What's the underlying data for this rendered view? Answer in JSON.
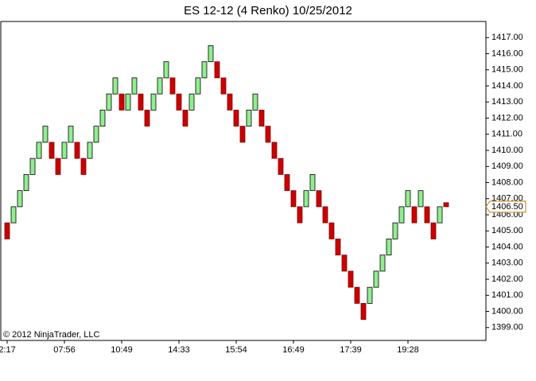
{
  "chart_data": {
    "type": "renko",
    "title": "ES 12-12 (4 Renko)  10/25/2012",
    "copyright": "© 2012 NinjaTrader, LLC",
    "categories": [
      "2:17",
      null,
      null,
      null,
      null,
      null,
      null,
      null,
      null,
      "07:56",
      null,
      null,
      null,
      null,
      null,
      null,
      null,
      null,
      "10:49",
      null,
      null,
      null,
      null,
      null,
      null,
      null,
      null,
      "14:33",
      null,
      null,
      null,
      null,
      null,
      null,
      null,
      null,
      "15:54",
      null,
      null,
      null,
      null,
      null,
      null,
      null,
      null,
      "16:49",
      null,
      null,
      null,
      null,
      null,
      null,
      null,
      null,
      "17:39",
      null,
      null,
      null,
      null,
      null,
      null,
      null,
      null,
      "19:28",
      null,
      null,
      null,
      null,
      null,
      null
    ],
    "open": [
      1405.5,
      1405.5,
      1406.5,
      1407.5,
      1408.5,
      1409.5,
      1410.5,
      1410.5,
      1409.5,
      1409.5,
      1410.5,
      1410.5,
      1409.5,
      1409.5,
      1410.5,
      1411.5,
      1412.5,
      1413.5,
      1413.5,
      1412.5,
      1413.5,
      1413.5,
      1412.5,
      1412.5,
      1413.5,
      1414.5,
      1414.5,
      1413.5,
      1412.5,
      1412.5,
      1413.5,
      1414.5,
      1415.5,
      1415.5,
      1414.5,
      1413.5,
      1412.5,
      1411.5,
      1411.5,
      1412.5,
      1412.5,
      1411.5,
      1410.5,
      1409.5,
      1408.5,
      1407.5,
      1406.5,
      1406.5,
      1407.5,
      1407.5,
      1406.5,
      1405.5,
      1404.5,
      1403.5,
      1402.5,
      1401.5,
      1400.5,
      1400.5,
      1401.5,
      1402.5,
      1403.5,
      1404.5,
      1405.5,
      1406.5,
      1406.5,
      1406.5,
      1406.5,
      1405.5,
      1405.5,
      1406.75
    ],
    "close": [
      1404.5,
      1406.5,
      1407.5,
      1408.5,
      1409.5,
      1410.5,
      1411.5,
      1409.5,
      1408.5,
      1410.5,
      1411.5,
      1409.5,
      1408.5,
      1410.5,
      1411.5,
      1412.5,
      1413.5,
      1414.5,
      1412.5,
      1413.5,
      1414.5,
      1412.5,
      1411.5,
      1413.5,
      1414.5,
      1415.5,
      1413.5,
      1412.5,
      1411.5,
      1413.5,
      1414.5,
      1415.5,
      1416.5,
      1414.5,
      1413.5,
      1412.5,
      1411.5,
      1410.5,
      1412.5,
      1413.5,
      1411.5,
      1410.5,
      1409.5,
      1408.5,
      1407.5,
      1406.5,
      1405.5,
      1407.5,
      1408.5,
      1406.5,
      1405.5,
      1404.5,
      1403.5,
      1402.5,
      1401.5,
      1400.5,
      1399.5,
      1401.5,
      1402.5,
      1403.5,
      1404.5,
      1405.5,
      1406.5,
      1407.5,
      1405.5,
      1407.5,
      1405.5,
      1404.5,
      1406.5,
      1406.5
    ],
    "up_color": "#90ee90",
    "down_color": "#cc0000",
    "ylim": [
      1398.2,
      1418.0
    ],
    "yticks": [
      {
        "value": 1399,
        "label": "1399.00"
      },
      {
        "value": 1400,
        "label": "1400.00"
      },
      {
        "value": 1401,
        "label": "1401.00"
      },
      {
        "value": 1402,
        "label": "1402.00"
      },
      {
        "value": 1403,
        "label": "1403.00"
      },
      {
        "value": 1404,
        "label": "1404.00"
      },
      {
        "value": 1405,
        "label": "1405.00"
      },
      {
        "value": 1406,
        "label": "1406.00"
      },
      {
        "value": 1407,
        "label": "1407.00"
      },
      {
        "value": 1408,
        "label": "1408.00"
      },
      {
        "value": 1409,
        "label": "1409.00"
      },
      {
        "value": 1410,
        "label": "1410.00"
      },
      {
        "value": 1411,
        "label": "1411.00"
      },
      {
        "value": 1412,
        "label": "1412.00"
      },
      {
        "value": 1413,
        "label": "1413.00"
      },
      {
        "value": 1414,
        "label": "1414.00"
      },
      {
        "value": 1415,
        "label": "1415.00"
      },
      {
        "value": 1416,
        "label": "1416.00"
      },
      {
        "value": 1417,
        "label": "1417.00"
      }
    ],
    "last_price": {
      "value": 1406.5,
      "label": "1406.50"
    }
  }
}
